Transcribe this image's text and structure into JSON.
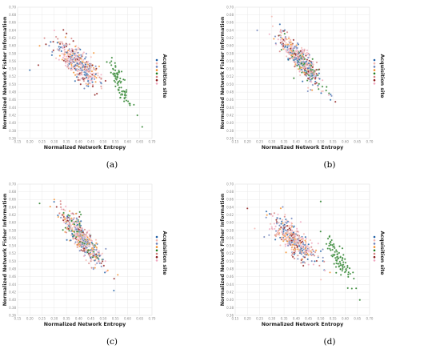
{
  "figure": {
    "captions": [
      "(a)",
      "(b)",
      "(c)",
      "(d)"
    ]
  },
  "chart_data": [
    {
      "type": "scatter",
      "panel": "(a)",
      "title": "",
      "xlabel": "Normalized Network Entropy",
      "ylabel": "Normalized Network Fisher Information",
      "xlim": [
        0.15,
        0.7
      ],
      "ylim": [
        0.36,
        0.7
      ],
      "xticks": [
        "0.15",
        "0.20",
        "0.25",
        "0.30",
        "0.35",
        "0.40",
        "0.45",
        "0.50",
        "0.55",
        "0.60",
        "0.65",
        "0.70"
      ],
      "yticks": [
        "0.36",
        "0.38",
        "0.40",
        "0.42",
        "0.44",
        "0.46",
        "0.48",
        "0.50",
        "0.52",
        "0.54",
        "0.56",
        "0.58",
        "0.60",
        "0.62",
        "0.64",
        "0.66",
        "0.68",
        "0.70"
      ],
      "grid": true,
      "legend": {
        "title": "Acquisition site",
        "position": "right",
        "labels": [
          "",
          "",
          "",
          "",
          "",
          "",
          "",
          ""
        ]
      },
      "series_colors": [
        "#1f5fa6",
        "#f2b6b0",
        "#6b7fb8",
        "#f28e2b",
        "#1e7a1e",
        "#d47f7f",
        "#8c1a1a",
        "#f0a8c0"
      ],
      "clusters": [
        {
          "series": 4,
          "cx": 0.565,
          "cy": 0.505,
          "sx": 0.022,
          "sy": 0.028,
          "rho": -0.82,
          "n": 85,
          "extra": [
            [
              0.66,
              0.39
            ],
            [
              0.64,
              0.42
            ]
          ]
        },
        {
          "series": [
            0,
            1,
            2,
            3,
            5,
            6,
            7
          ],
          "cx": 0.395,
          "cy": 0.555,
          "sx": 0.045,
          "sy": 0.028,
          "rho": -0.72,
          "n": 430,
          "extra": [
            [
              0.2,
              0.537
            ],
            [
              0.235,
              0.55
            ],
            [
              0.24,
              0.6
            ],
            [
              0.26,
              0.62
            ],
            [
              0.3,
              0.64
            ]
          ]
        }
      ]
    },
    {
      "type": "scatter",
      "panel": "(b)",
      "title": "",
      "xlabel": "Normalized Network Entropy",
      "ylabel": "Normalized Network Fisher Information",
      "xlim": [
        0.15,
        0.7
      ],
      "ylim": [
        0.36,
        0.7
      ],
      "xticks": [
        "0.15",
        "0.20",
        "0.25",
        "0.30",
        "0.35",
        "0.40",
        "0.45",
        "0.50",
        "0.55",
        "0.60",
        "0.65",
        "0.70"
      ],
      "yticks": [
        "0.36",
        "0.38",
        "0.40",
        "0.42",
        "0.44",
        "0.46",
        "0.48",
        "0.50",
        "0.52",
        "0.54",
        "0.56",
        "0.58",
        "0.60",
        "0.62",
        "0.64",
        "0.66",
        "0.68",
        "0.70"
      ],
      "grid": true,
      "legend": {
        "title": "Acquisition site",
        "position": "right",
        "labels": [
          "",
          "",
          "",
          "",
          "",
          "",
          "",
          ""
        ]
      },
      "series_colors": [
        "#1f5fa6",
        "#f2b6b0",
        "#6b7fb8",
        "#f28e2b",
        "#1e7a1e",
        "#d47f7f",
        "#8c1a1a",
        "#f0a8c0"
      ],
      "clusters": [
        {
          "series": [
            0,
            1,
            2,
            3,
            4,
            5,
            6,
            7
          ],
          "cx": 0.415,
          "cy": 0.565,
          "sx": 0.04,
          "sy": 0.032,
          "rho": -0.85,
          "n": 500,
          "extra": [
            [
              0.24,
              0.64
            ],
            [
              0.56,
              0.455
            ],
            [
              0.54,
              0.46
            ],
            [
              0.29,
              0.63
            ]
          ]
        }
      ]
    },
    {
      "type": "scatter",
      "panel": "(c)",
      "title": "",
      "xlabel": "Normalized Network Entropy",
      "ylabel": "Normalized Network Fisher Information",
      "xlim": [
        0.15,
        0.7
      ],
      "ylim": [
        0.36,
        0.7
      ],
      "xticks": [
        "0.15",
        "0.20",
        "0.25",
        "0.30",
        "0.35",
        "0.40",
        "0.45",
        "0.50",
        "0.55",
        "0.60",
        "0.65",
        "0.70"
      ],
      "yticks": [
        "0.36",
        "0.38",
        "0.40",
        "0.42",
        "0.44",
        "0.46",
        "0.48",
        "0.50",
        "0.52",
        "0.54",
        "0.56",
        "0.58",
        "0.60",
        "0.62",
        "0.64",
        "0.66",
        "0.68",
        "0.70"
      ],
      "grid": true,
      "legend": {
        "title": "Acquisition site",
        "position": "right",
        "labels": [
          "",
          "",
          "",
          "",
          "",
          "",
          "",
          ""
        ]
      },
      "series_colors": [
        "#1f5fa6",
        "#f2b6b0",
        "#6b7fb8",
        "#f28e2b",
        "#1e7a1e",
        "#d47f7f",
        "#8c1a1a",
        "#f0a8c0"
      ],
      "clusters": [
        {
          "series": [
            0,
            1,
            2,
            3,
            4,
            5,
            6,
            7
          ],
          "cx": 0.415,
          "cy": 0.56,
          "sx": 0.04,
          "sy": 0.034,
          "rho": -0.85,
          "n": 560,
          "extra": [
            [
              0.24,
              0.65
            ],
            [
              0.56,
              0.465
            ],
            [
              0.545,
              0.455
            ],
            [
              0.3,
              0.66
            ]
          ]
        }
      ]
    },
    {
      "type": "scatter",
      "panel": "(d)",
      "title": "",
      "xlabel": "Normalized Network Entropy",
      "ylabel": "Normalized Network Fisher Information",
      "xlim": [
        0.15,
        0.7
      ],
      "ylim": [
        0.36,
        0.7
      ],
      "xticks": [
        "0.15",
        "0.20",
        "0.25",
        "0.30",
        "0.35",
        "0.40",
        "0.45",
        "0.50",
        "0.55",
        "0.60",
        "0.65",
        "0.70"
      ],
      "yticks": [
        "0.36",
        "0.38",
        "0.40",
        "0.42",
        "0.44",
        "0.46",
        "0.48",
        "0.50",
        "0.52",
        "0.54",
        "0.56",
        "0.58",
        "0.60",
        "0.62",
        "0.64",
        "0.66",
        "0.68",
        "0.70"
      ],
      "grid": true,
      "legend": {
        "title": "Acquisition site",
        "position": "right",
        "labels": [
          "",
          "",
          "",
          "",
          "",
          "",
          "",
          ""
        ]
      },
      "series_colors": [
        "#1f5fa6",
        "#f2b6b0",
        "#6b7fb8",
        "#f28e2b",
        "#1e7a1e",
        "#d47f7f",
        "#8c1a1a",
        "#f0a8c0"
      ],
      "clusters": [
        {
          "series": 4,
          "cx": 0.575,
          "cy": 0.505,
          "sx": 0.025,
          "sy": 0.03,
          "rho": -0.82,
          "n": 90,
          "extra": [
            [
              0.5,
              0.655
            ],
            [
              0.66,
              0.4
            ],
            [
              0.645,
              0.43
            ]
          ]
        },
        {
          "series": [
            0,
            1,
            2,
            3,
            5,
            6,
            7
          ],
          "cx": 0.39,
          "cy": 0.555,
          "sx": 0.045,
          "sy": 0.03,
          "rho": -0.72,
          "n": 430,
          "extra": [
            [
              0.2,
              0.637
            ],
            [
              0.23,
              0.585
            ],
            [
              0.28,
              0.62
            ]
          ]
        }
      ]
    }
  ]
}
